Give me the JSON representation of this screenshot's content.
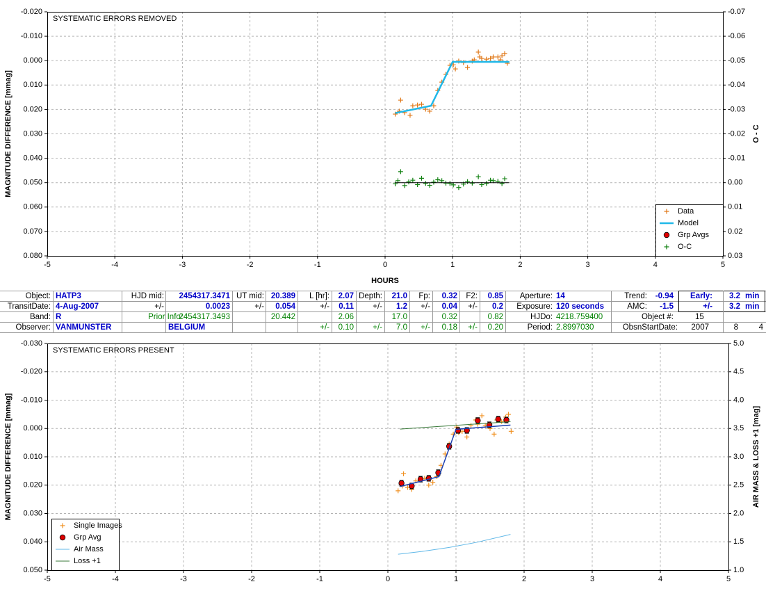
{
  "chart_data": [
    {
      "type": "scatter",
      "title": "SYSTEMATIC ERRORS REMOVED",
      "x_label": "HOURS",
      "y_label": "MAGNITUDE DIFFERENCE [mmag]",
      "y2_label": "O - C",
      "xlim": [
        -5,
        5
      ],
      "xticks": [
        -5,
        -4,
        -3,
        -2,
        -1,
        0,
        1,
        2,
        3,
        4,
        5
      ],
      "ylim": [
        -0.02,
        0.08
      ],
      "y_reversed": true,
      "yticks": [
        {
          "value": -0.02,
          "label": "-0.020"
        },
        {
          "value": -0.01,
          "label": "-0.010"
        },
        {
          "value": 0,
          "label": "0.000"
        },
        {
          "value": 0.01,
          "label": "0.010"
        },
        {
          "value": 0.02,
          "label": "0.020"
        },
        {
          "value": 0.03,
          "label": "0.030"
        },
        {
          "value": 0.04,
          "label": "0.040"
        },
        {
          "value": 0.05,
          "label": "0.050"
        },
        {
          "value": 0.06,
          "label": "0.060"
        },
        {
          "value": 0.07,
          "label": "0.070"
        },
        {
          "value": 0.08,
          "label": "0.080"
        }
      ],
      "y2lim": [
        -0.07,
        0.03
      ],
      "y2_reversed": true,
      "y2ticks": [
        -0.07,
        -0.06,
        -0.05,
        -0.04,
        -0.03,
        -0.02,
        -0.01,
        {
          "value": 0,
          "label": "0.00"
        },
        0.01,
        0.02,
        0.03
      ],
      "grid": true,
      "legend": "lower right",
      "series": [
        {
          "name": "Data",
          "marker": "plus",
          "color": "#e07818",
          "x": [
            0.15,
            0.21,
            0.23,
            0.29,
            0.37,
            0.41,
            0.48,
            0.54,
            0.6,
            0.66,
            0.72,
            0.78,
            0.84,
            0.9,
            0.96,
            1.01,
            1.04,
            1.09,
            1.16,
            1.22,
            1.29,
            1.32,
            1.38,
            1.4,
            1.43,
            1.5,
            1.56,
            1.6,
            1.67,
            1.71,
            1.73,
            1.77,
            1.81
          ],
          "values": [
            0.0219,
            0.0207,
            0.0162,
            0.0213,
            0.0224,
            0.0185,
            0.0182,
            0.0179,
            0.0199,
            0.0207,
            0.0185,
            0.0122,
            0.0088,
            0.0056,
            0.0019,
            0.0017,
            0.0034,
            0.0002,
            0.0008,
            0.0028,
            0.0002,
            -0.0003,
            -0.0035,
            -0.0015,
            -0.0009,
            -0.0006,
            -0.0009,
            -0.0015,
            -0.0015,
            -0.0003,
            -0.002,
            -0.0029,
            0.0011
          ]
        },
        {
          "name": "Model",
          "marker": "line",
          "color": "#20b8e8",
          "width": 2.5,
          "x": [
            0.15,
            0.68,
            1.0,
            1.84
          ],
          "values": [
            0.0215,
            0.0185,
            0.0005,
            0.0005
          ]
        },
        {
          "name": "Grp Avgs",
          "marker": "circle",
          "color": "#e00000",
          "x": [],
          "values": []
        },
        {
          "name": "O-C",
          "marker": "plus",
          "color": "#108010",
          "axis": "y2",
          "x": [
            0.15,
            0.19,
            0.23,
            0.29,
            0.35,
            0.41,
            0.48,
            0.54,
            0.6,
            0.66,
            0.72,
            0.78,
            0.84,
            0.9,
            0.96,
            1.01,
            1.09,
            1.16,
            1.22,
            1.29,
            1.38,
            1.43,
            1.5,
            1.56,
            1.6,
            1.67,
            1.73,
            1.77
          ],
          "values": [
            0.0005,
            -0.0008,
            -0.0045,
            0.0012,
            -0.0003,
            -0.001,
            0.0008,
            -0.0018,
            0.0003,
            0.0011,
            -0.0002,
            -0.0012,
            -0.0008,
            0.0002,
            0.0003,
            0.0009,
            0.002,
            0.0006,
            -0.0004,
            0.0002,
            -0.0024,
            0.0008,
            0.0003,
            -0.001,
            -0.0008,
            -0.0006,
            0.0004,
            -0.0016
          ]
        },
        {
          "marker": "line",
          "color": "#000000",
          "axis": "y2",
          "width": 1,
          "x": [
            0.15,
            1.84
          ],
          "values": [
            0,
            0
          ]
        }
      ]
    },
    {
      "type": "scatter",
      "title": "SYSTEMATIC ERRORS PRESENT",
      "y_label": "MAGNITUDE DIFFERENCE [mmag]",
      "y2_label": "AIR MASS & LOSS +1 [mag]",
      "xlim": [
        -5,
        5
      ],
      "xticks": [
        -5,
        -4,
        -3,
        -2,
        -1,
        0,
        1,
        2,
        3,
        4,
        5
      ],
      "ylim": [
        -0.03,
        0.05
      ],
      "y_reversed": true,
      "yticks": [
        {
          "value": -0.03,
          "label": "-0.030"
        },
        {
          "value": -0.02,
          "label": "-0.020"
        },
        {
          "value": -0.01,
          "label": "-0.010"
        },
        {
          "value": 0,
          "label": "0.000"
        },
        {
          "value": 0.01,
          "label": "0.010"
        },
        {
          "value": 0.02,
          "label": "0.020"
        },
        {
          "value": 0.03,
          "label": "0.030"
        },
        {
          "value": 0.04,
          "label": "0.040"
        },
        {
          "value": 0.05,
          "label": "0.050"
        }
      ],
      "y2lim": [
        1,
        5
      ],
      "y2ticks": [
        {
          "value": 1,
          "label": "1.0"
        },
        1.5,
        {
          "value": 2,
          "label": "2.0"
        },
        2.5,
        {
          "value": 3,
          "label": "3.0"
        },
        3.5,
        {
          "value": 4,
          "label": "4.0"
        },
        4.5,
        {
          "value": 5,
          "label": "5.0"
        }
      ],
      "grid": true,
      "legend": "lower left",
      "series": [
        {
          "name": "Single Images",
          "marker": "plus",
          "color": "#f09020",
          "x": [
            0.15,
            0.21,
            0.23,
            0.29,
            0.35,
            0.41,
            0.48,
            0.54,
            0.6,
            0.66,
            0.72,
            0.78,
            0.84,
            0.9,
            0.96,
            1.01,
            1.04,
            1.09,
            1.16,
            1.22,
            1.29,
            1.32,
            1.38,
            1.43,
            1.5,
            1.56,
            1.6,
            1.67,
            1.73,
            1.77,
            1.81
          ],
          "values": [
            0.022,
            0.0203,
            0.016,
            0.0208,
            0.0215,
            0.0185,
            0.018,
            0.0176,
            0.02,
            0.019,
            0.017,
            0.013,
            0.009,
            0.0055,
            0.002,
            -0.0005,
            0.0015,
            0.001,
            0.003,
            -0.001,
            -0.003,
            -0.0015,
            -0.0045,
            -0.001,
            0.0,
            0.002,
            -0.003,
            -0.0025,
            -0.004,
            -0.005,
            0.001
          ]
        },
        {
          "name": "Grp Avg",
          "marker": "circle",
          "color": "#e00000",
          "x": [
            0.2,
            0.35,
            0.48,
            0.6,
            0.74,
            0.9,
            1.03,
            1.16,
            1.32,
            1.49,
            1.62,
            1.74
          ],
          "values": [
            0.0193,
            0.0203,
            0.0179,
            0.0176,
            0.0156,
            0.0063,
            0.0007,
            0.0007,
            -0.0028,
            -0.0013,
            -0.0033,
            -0.003
          ],
          "errors": [
            0.001,
            0.001,
            0.001,
            0.001,
            0.001,
            0.001,
            0.001,
            0.001,
            0.001,
            0.001,
            0.001,
            0.001
          ]
        },
        {
          "name": "Air Mass",
          "marker": "line",
          "color": "#60b8e8",
          "axis": "y2",
          "width": 1,
          "x": [
            0.15,
            0.5,
            0.9,
            1.3,
            1.8
          ],
          "values": [
            1.28,
            1.33,
            1.4,
            1.49,
            1.63
          ]
        },
        {
          "name": "Loss +1",
          "marker": "line",
          "color": "#3a7a3a",
          "axis": "y2",
          "width": 1,
          "x": [
            0.18,
            1.8
          ],
          "values": [
            3.49,
            3.62
          ]
        },
        {
          "marker": "line",
          "color": "#1c3fb0",
          "width": 1.5,
          "x": [
            0.18,
            0.75,
            1.0,
            1.8
          ],
          "values": [
            0.0205,
            0.017,
            0.0003,
            -0.0012
          ]
        }
      ]
    }
  ],
  "table": {
    "rows": [
      [
        "Object:",
        "HATP3",
        "HJD mid:",
        "2454317.3471",
        "UT mid:",
        "20.389",
        "L [hr]:",
        "2.07",
        "Depth:",
        "21.0",
        "Fp:",
        "0.32",
        "F2:",
        "0.85",
        "Aperture:",
        "14",
        "Trend:",
        "-0.94",
        "Early:",
        "3.2",
        "min"
      ],
      [
        "TransitDate:",
        "4-Aug-2007",
        "+/-",
        "0.0023",
        "+/-",
        "0.054",
        "+/-",
        "0.11",
        "+/-",
        "1.2",
        "+/-",
        "0.04",
        "+/-",
        "0.2",
        "Exposure:",
        "120 seconds",
        "AMC:",
        "-1.5",
        "+/-",
        "3.2",
        "min"
      ],
      [
        "Band:",
        "R",
        "Prior Info:",
        "2454317.3493",
        "20.442",
        "2.06",
        "17.0",
        "0.32",
        "0.82",
        "HJDo:",
        "4218.759400",
        "Object #:",
        "15"
      ],
      [
        "Observer:",
        "VANMUNSTER",
        "BELGIUM",
        "+/-",
        "0.10",
        "+/-",
        "7.0",
        "+/-",
        "0.18",
        "+/-",
        "0.20",
        "Period:",
        "2.8997030",
        "ObsnStartDate:",
        "2007",
        "8",
        "4"
      ]
    ]
  }
}
